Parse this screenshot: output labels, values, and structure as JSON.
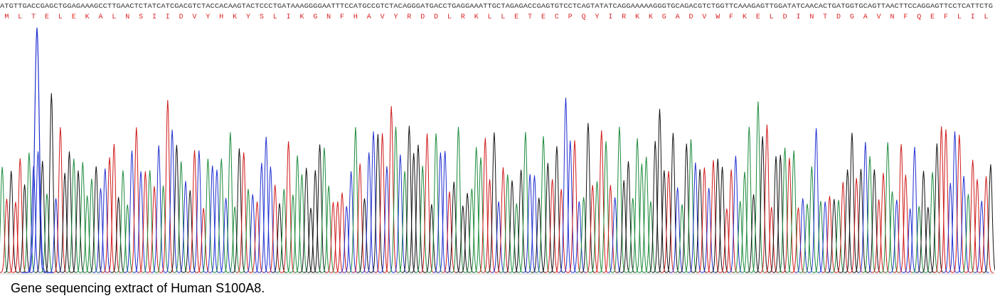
{
  "sequence": "ATGTTGACCGAGCTGGAGAAAGCCTTGAACTCTATCATCGACGTCTACCACAAGTACTCCCTGATAAAGGGGAATTTCCATGCCGTCTACAGGGATGACCTGAGGAAATTGCTAGAGACCGAGTGTCCTCAGTATATCAGGAAAAAGGGTGCAGACGTCTGGTTCAAAGAGTTGGATATCAACACTGATGGTGCAGTTAACTTCCAGGAGTTCCTCATTCTG",
  "amino_acids": [
    "M",
    "L",
    "T",
    "E",
    "L",
    "E",
    "K",
    "A",
    "L",
    "N",
    "S",
    "I",
    "I",
    "D",
    "V",
    "Y",
    "H",
    "K",
    "Y",
    "S",
    "L",
    "I",
    "K",
    "G",
    "N",
    "F",
    "H",
    "A",
    "V",
    "Y",
    "R",
    "D",
    "D",
    "L",
    "R",
    "K",
    "L",
    "L",
    "E",
    "T",
    "E",
    "C",
    "P",
    "Q",
    "Y",
    "I",
    "R",
    "K",
    "K",
    "G",
    "A",
    "D",
    "V",
    "W",
    "F",
    "K",
    "E",
    "L",
    "D",
    "I",
    "N",
    "T",
    "D",
    "G",
    "A",
    "V",
    "N",
    "F",
    "Q",
    "E",
    "F",
    "L",
    "I",
    "L"
  ],
  "caption": "Gene sequencing extract of Human S100A8."
}
